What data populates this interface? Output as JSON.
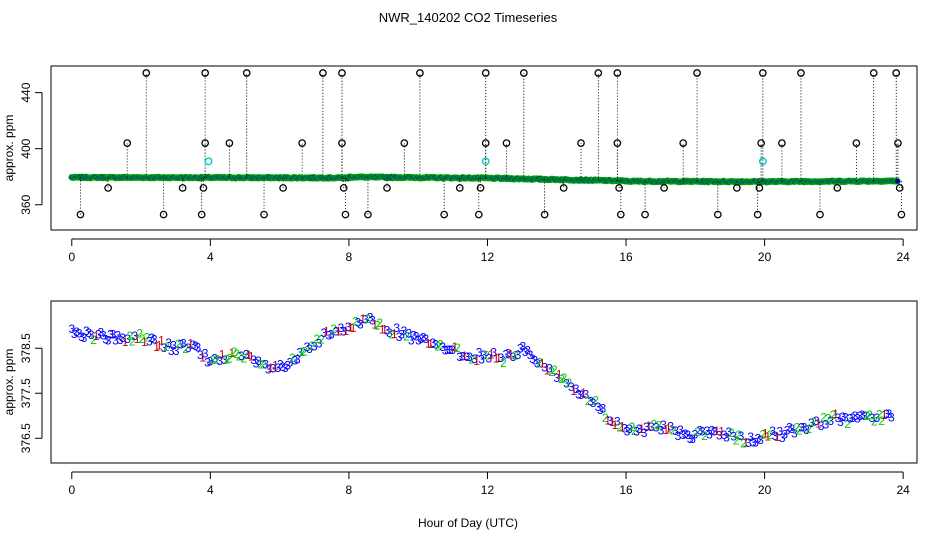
{
  "figure": {
    "title": "NWR_140202  CO2 Timeseries",
    "xlabel": "Hour of Day (UTC)"
  },
  "colors": {
    "axis": "#000000",
    "main_points": "#0000cc",
    "ring": "#00aa00",
    "spike": "#000000",
    "cyan_points": "#00cccc",
    "label_1": "#cc0000",
    "label_2": "#00cc00",
    "label_3": "#0000ff"
  },
  "chart_data": [
    {
      "type": "scatter",
      "name": "full-range",
      "ylabel": "approx. ppm",
      "xlim": [
        -0.6,
        24.4
      ],
      "ylim": [
        342,
        459
      ],
      "xticks": [
        0,
        4,
        8,
        12,
        16,
        20,
        24
      ],
      "yticks": [
        360,
        400,
        440
      ],
      "baseline": {
        "description_note": "",
        "segments": [
          {
            "x0": 0.0,
            "x1": 8.0,
            "y0": 379.5,
            "y1": 379.2
          },
          {
            "x0": 8.0,
            "x1": 12.0,
            "y0": 379.8,
            "y1": 379.0
          },
          {
            "x0": 12.0,
            "x1": 16.0,
            "y0": 379.0,
            "y1": 377.0
          },
          {
            "x0": 16.0,
            "x1": 20.0,
            "y0": 376.8,
            "y1": 376.5
          },
          {
            "x0": 20.0,
            "x1": 23.9,
            "y0": 376.5,
            "y1": 377.0
          }
        ]
      },
      "spikes_high": [
        {
          "x": 2.15,
          "y": 454
        },
        {
          "x": 3.85,
          "y": 454
        },
        {
          "x": 5.05,
          "y": 454
        },
        {
          "x": 7.25,
          "y": 454
        },
        {
          "x": 7.8,
          "y": 454
        },
        {
          "x": 10.05,
          "y": 454
        },
        {
          "x": 11.95,
          "y": 454
        },
        {
          "x": 13.05,
          "y": 454
        },
        {
          "x": 15.2,
          "y": 454
        },
        {
          "x": 15.75,
          "y": 454
        },
        {
          "x": 18.05,
          "y": 454
        },
        {
          "x": 19.95,
          "y": 454
        },
        {
          "x": 21.05,
          "y": 454
        },
        {
          "x": 23.15,
          "y": 454
        },
        {
          "x": 23.8,
          "y": 454
        }
      ],
      "spikes_mid": [
        {
          "x": 1.6,
          "y": 404
        },
        {
          "x": 3.85,
          "y": 404
        },
        {
          "x": 4.55,
          "y": 404
        },
        {
          "x": 6.65,
          "y": 404
        },
        {
          "x": 7.8,
          "y": 404
        },
        {
          "x": 9.6,
          "y": 404
        },
        {
          "x": 11.95,
          "y": 404
        },
        {
          "x": 12.55,
          "y": 404
        },
        {
          "x": 14.7,
          "y": 404
        },
        {
          "x": 15.75,
          "y": 404
        },
        {
          "x": 17.65,
          "y": 404
        },
        {
          "x": 19.9,
          "y": 404
        },
        {
          "x": 20.5,
          "y": 404
        },
        {
          "x": 22.65,
          "y": 404
        },
        {
          "x": 23.85,
          "y": 404
        }
      ],
      "spikes_low": [
        {
          "x": 0.25,
          "y": 353
        },
        {
          "x": 2.65,
          "y": 353
        },
        {
          "x": 3.75,
          "y": 353
        },
        {
          "x": 5.55,
          "y": 353
        },
        {
          "x": 7.9,
          "y": 353
        },
        {
          "x": 8.55,
          "y": 353
        },
        {
          "x": 10.75,
          "y": 353
        },
        {
          "x": 11.75,
          "y": 353
        },
        {
          "x": 13.65,
          "y": 353
        },
        {
          "x": 15.85,
          "y": 353
        },
        {
          "x": 16.55,
          "y": 353
        },
        {
          "x": 18.65,
          "y": 353
        },
        {
          "x": 19.8,
          "y": 353
        },
        {
          "x": 21.6,
          "y": 353
        },
        {
          "x": 23.95,
          "y": 353
        }
      ],
      "spikes_near": [
        {
          "x": 1.05,
          "y": 372
        },
        {
          "x": 3.2,
          "y": 372
        },
        {
          "x": 3.8,
          "y": 372
        },
        {
          "x": 6.1,
          "y": 372
        },
        {
          "x": 7.85,
          "y": 372
        },
        {
          "x": 9.1,
          "y": 372
        },
        {
          "x": 11.2,
          "y": 372
        },
        {
          "x": 11.8,
          "y": 372
        },
        {
          "x": 14.2,
          "y": 372
        },
        {
          "x": 15.8,
          "y": 372
        },
        {
          "x": 17.1,
          "y": 372
        },
        {
          "x": 19.2,
          "y": 372
        },
        {
          "x": 19.85,
          "y": 372
        },
        {
          "x": 22.1,
          "y": 372
        },
        {
          "x": 23.9,
          "y": 372
        }
      ],
      "cyan_points": [
        {
          "x": 3.95,
          "y": 391
        },
        {
          "x": 11.95,
          "y": 391
        },
        {
          "x": 19.95,
          "y": 391
        }
      ]
    },
    {
      "type": "scatter",
      "name": "zoomed",
      "ylabel": "approx. ppm",
      "xlabel": "Hour of Day (UTC)",
      "xlim": [
        -0.6,
        24.4
      ],
      "ylim": [
        375.95,
        379.55
      ],
      "xticks": [
        0,
        4,
        8,
        12,
        16,
        20,
        24
      ],
      "yticks": [
        376.5,
        377.5,
        378.5
      ],
      "marker_labels": [
        "1",
        "2",
        "3"
      ],
      "trend": [
        {
          "x": 0.0,
          "y": 378.85
        },
        {
          "x": 0.5,
          "y": 378.8
        },
        {
          "x": 1.0,
          "y": 378.75
        },
        {
          "x": 1.5,
          "y": 378.7
        },
        {
          "x": 2.0,
          "y": 378.75
        },
        {
          "x": 2.5,
          "y": 378.6
        },
        {
          "x": 3.0,
          "y": 378.5
        },
        {
          "x": 3.5,
          "y": 378.55
        },
        {
          "x": 4.0,
          "y": 378.2
        },
        {
          "x": 4.5,
          "y": 378.35
        },
        {
          "x": 5.0,
          "y": 378.3
        },
        {
          "x": 5.5,
          "y": 378.1
        },
        {
          "x": 6.0,
          "y": 378.05
        },
        {
          "x": 6.5,
          "y": 378.25
        },
        {
          "x": 7.0,
          "y": 378.6
        },
        {
          "x": 7.5,
          "y": 378.85
        },
        {
          "x": 8.0,
          "y": 378.9
        },
        {
          "x": 8.5,
          "y": 379.2
        },
        {
          "x": 9.0,
          "y": 379.0
        },
        {
          "x": 9.5,
          "y": 378.8
        },
        {
          "x": 10.0,
          "y": 378.7
        },
        {
          "x": 10.5,
          "y": 378.55
        },
        {
          "x": 11.0,
          "y": 378.45
        },
        {
          "x": 11.5,
          "y": 378.3
        },
        {
          "x": 12.0,
          "y": 378.35
        },
        {
          "x": 12.5,
          "y": 378.25
        },
        {
          "x": 13.0,
          "y": 378.5
        },
        {
          "x": 13.5,
          "y": 378.2
        },
        {
          "x": 14.0,
          "y": 377.9
        },
        {
          "x": 14.5,
          "y": 377.6
        },
        {
          "x": 15.0,
          "y": 377.35
        },
        {
          "x": 15.5,
          "y": 376.95
        },
        {
          "x": 16.0,
          "y": 376.7
        },
        {
          "x": 16.5,
          "y": 376.65
        },
        {
          "x": 17.0,
          "y": 376.75
        },
        {
          "x": 17.5,
          "y": 376.65
        },
        {
          "x": 18.0,
          "y": 376.55
        },
        {
          "x": 18.5,
          "y": 376.65
        },
        {
          "x": 19.0,
          "y": 376.55
        },
        {
          "x": 19.5,
          "y": 376.4
        },
        {
          "x": 20.0,
          "y": 376.55
        },
        {
          "x": 20.5,
          "y": 376.6
        },
        {
          "x": 21.0,
          "y": 376.7
        },
        {
          "x": 21.5,
          "y": 376.85
        },
        {
          "x": 22.0,
          "y": 376.95
        },
        {
          "x": 22.5,
          "y": 376.9
        },
        {
          "x": 23.0,
          "y": 376.95
        },
        {
          "x": 23.7,
          "y": 377.0
        }
      ]
    }
  ]
}
